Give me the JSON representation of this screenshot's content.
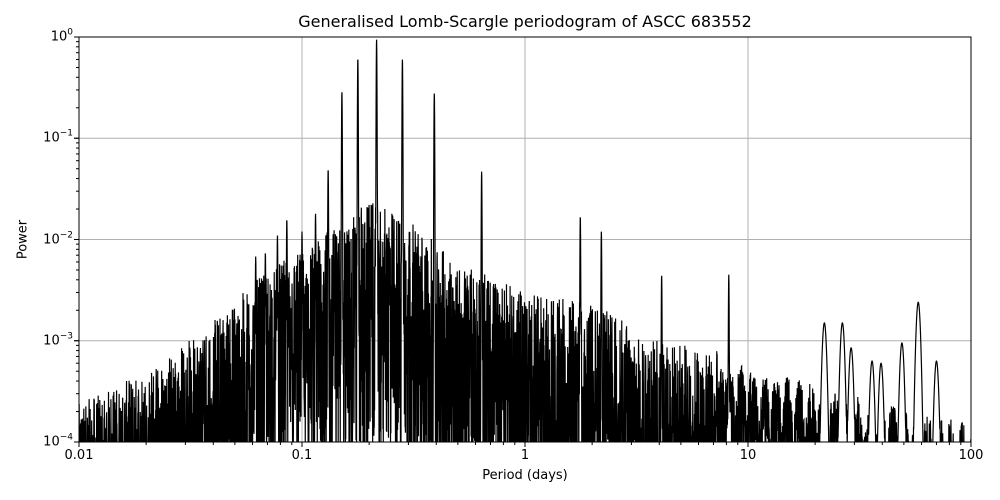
{
  "chart_data": {
    "type": "line",
    "title": "Generalised Lomb-Scargle periodogram of ASCC 683552",
    "xlabel": "Period (days)",
    "ylabel": "Power",
    "xscale": "log",
    "yscale": "log",
    "xlim": [
      0.01,
      100
    ],
    "ylim": [
      0.0001,
      1
    ],
    "grid": true,
    "legend": null,
    "x_ticks": [
      "0.01",
      "0.1",
      "1",
      "10",
      "100"
    ],
    "y_ticks": [
      {
        "base": "10",
        "exp": "0"
      },
      {
        "base": "10",
        "exp": "−1"
      },
      {
        "base": "10",
        "exp": "−2"
      },
      {
        "base": "10",
        "exp": "−3"
      },
      {
        "base": "10",
        "exp": "−4"
      }
    ],
    "line_color": "#000000",
    "grid_color": "#b0b0b0",
    "major_peaks": [
      {
        "period": 0.216,
        "power": 0.95
      },
      {
        "period": 0.178,
        "power": 0.62
      },
      {
        "period": 0.282,
        "power": 0.61
      },
      {
        "period": 0.151,
        "power": 0.29
      },
      {
        "period": 0.392,
        "power": 0.28
      },
      {
        "period": 0.131,
        "power": 0.05
      },
      {
        "period": 0.639,
        "power": 0.047
      },
      {
        "period": 0.115,
        "power": 0.018
      },
      {
        "period": 0.0855,
        "power": 0.016
      },
      {
        "period": 0.1,
        "power": 0.012
      },
      {
        "period": 1.77,
        "power": 0.017
      },
      {
        "period": 2.2,
        "power": 0.012
      },
      {
        "period": 0.0776,
        "power": 0.011
      },
      {
        "period": 0.0685,
        "power": 0.0075
      },
      {
        "period": 0.062,
        "power": 0.0068
      },
      {
        "period": 4.1,
        "power": 0.0045
      },
      {
        "period": 8.2,
        "power": 0.0045
      },
      {
        "period": 58.0,
        "power": 0.0024
      },
      {
        "period": 22.0,
        "power": 0.0015
      },
      {
        "period": 26.5,
        "power": 0.0015
      },
      {
        "period": 49.0,
        "power": 0.00095
      },
      {
        "period": 70.0,
        "power": 0.00063
      },
      {
        "period": 29.0,
        "power": 0.00085
      },
      {
        "period": 36.0,
        "power": 0.00063
      },
      {
        "period": 39.5,
        "power": 0.0006
      },
      {
        "period": 0.0165,
        "power": 0.00016
      }
    ],
    "envelope": {
      "description": "Dense forest of peaks; noise floor rises from ~1e-4 at 0.01 d to ~1e-2 near 0.2 d, then declines to ~1e-3 by 3 d; sparse smooth peaks beyond 10 d",
      "points": [
        {
          "period": 0.01,
          "power": 0.00012
        },
        {
          "period": 0.02,
          "power": 0.00025
        },
        {
          "period": 0.04,
          "power": 0.0008
        },
        {
          "period": 0.07,
          "power": 0.0025
        },
        {
          "period": 0.1,
          "power": 0.004
        },
        {
          "period": 0.2,
          "power": 0.012
        },
        {
          "period": 0.3,
          "power": 0.008
        },
        {
          "period": 0.5,
          "power": 0.003
        },
        {
          "period": 1.0,
          "power": 0.0015
        },
        {
          "period": 2.0,
          "power": 0.0012
        },
        {
          "period": 4.0,
          "power": 0.0005
        },
        {
          "period": 8.0,
          "power": 0.0004
        },
        {
          "period": 100.0,
          "power": 0.0001
        }
      ]
    }
  }
}
